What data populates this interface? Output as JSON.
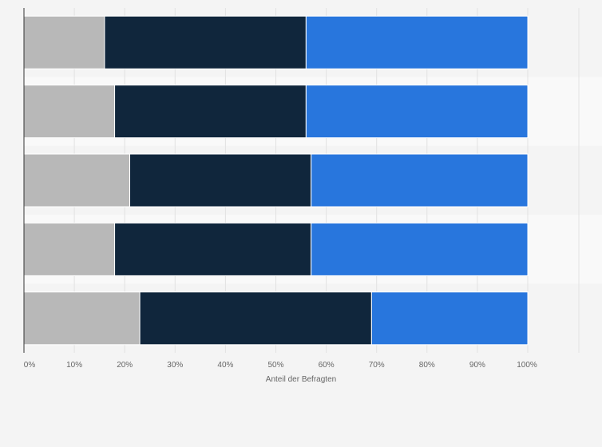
{
  "chart_data": {
    "type": "bar",
    "orientation": "horizontal",
    "stacked": true,
    "categories": [
      "",
      "",
      "",
      "",
      ""
    ],
    "series": [
      {
        "color": "#b8b8b8",
        "values": [
          16,
          18,
          21,
          18,
          23
        ]
      },
      {
        "color": "#10263c",
        "values": [
          40,
          38,
          36,
          39,
          46
        ]
      },
      {
        "color": "#2876dd",
        "values": [
          44,
          44,
          43,
          43,
          31
        ]
      }
    ],
    "xlim": [
      0,
      100
    ],
    "xticks": [
      "0%",
      "10%",
      "20%",
      "30%",
      "40%",
      "50%",
      "60%",
      "70%",
      "80%",
      "90%",
      "100%"
    ],
    "xlabel": "Anteil der Befragten",
    "grid": true
  }
}
